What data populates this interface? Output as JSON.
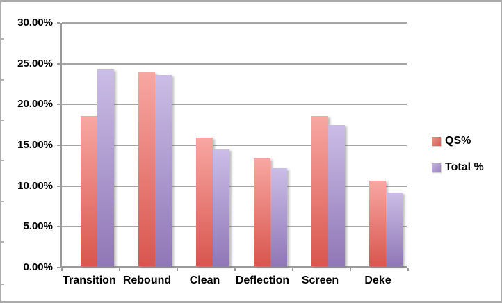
{
  "chart_data": {
    "type": "bar",
    "title": "",
    "xlabel": "",
    "ylabel": "",
    "categories": [
      "Transition",
      "Rebound",
      "Clean",
      "Deflection",
      "Screen",
      "Deke"
    ],
    "series": [
      {
        "name": "QS%",
        "values": [
          18.4,
          23.8,
          15.8,
          13.2,
          18.4,
          10.5
        ],
        "color_top": "#f8a7a2",
        "color_bottom": "#d8564e",
        "legend_color_top": "#eb948e",
        "legend_color_bottom": "#d75b53"
      },
      {
        "name": "Total %",
        "values": [
          24.1,
          23.4,
          14.3,
          12.0,
          17.3,
          9.0
        ],
        "color_top": "#cabde6",
        "color_bottom": "#9077b6",
        "legend_color_top": "#c4b5de",
        "legend_color_bottom": "#9c83c1"
      }
    ],
    "ylim": [
      0,
      30
    ],
    "ytick_step": 5,
    "ytick_labels": [
      "0.00%",
      "5.00%",
      "10.00%",
      "15.00%",
      "20.00%",
      "25.00%",
      "30.00%"
    ],
    "grid": true,
    "legend_position": "right"
  },
  "colors": {
    "gridline": "#a6a6a6",
    "axis": "#9a9a9a",
    "frame_border": "#ababab",
    "text": "#000000",
    "background": "#ffffff"
  }
}
